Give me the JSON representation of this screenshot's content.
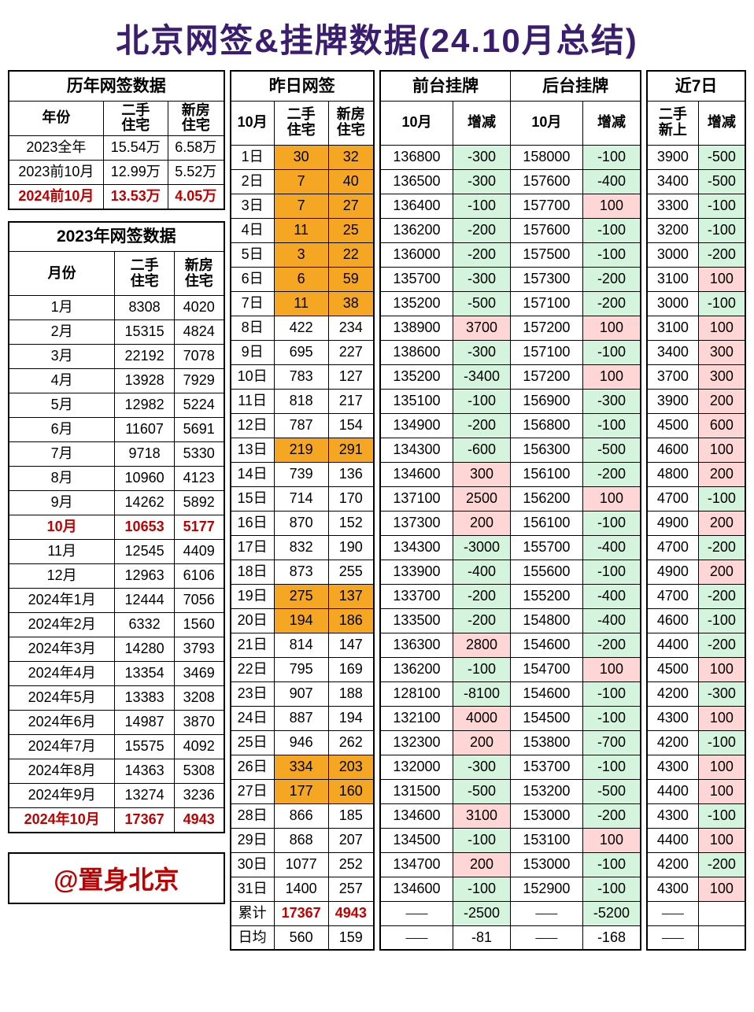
{
  "title": "北京网签&挂牌数据(24.10月总结)",
  "attribution": "@置身北京",
  "colors": {
    "title": "#3a1d6e",
    "red": "#c00000",
    "orange": "#f5a623",
    "green": "#d4f4dd",
    "pink": "#ffd6d6",
    "border": "#000000",
    "bg": "#ffffff"
  },
  "yearly": {
    "header": "历年网签数据",
    "cols": [
      "年份",
      "二手住宅",
      "新房住宅"
    ],
    "rows": [
      {
        "label": "2023全年",
        "v1": "15.54万",
        "v2": "6.58万",
        "red": false
      },
      {
        "label": "2023前10月",
        "v1": "12.99万",
        "v2": "5.52万",
        "red": false
      },
      {
        "label": "2024前10月",
        "v1": "13.53万",
        "v2": "4.05万",
        "red": true
      }
    ]
  },
  "monthly2023": {
    "header": "2023年网签数据",
    "cols": [
      "月份",
      "二手住宅",
      "新房住宅"
    ],
    "rows": [
      {
        "label": "1月",
        "v1": "8308",
        "v2": "4020",
        "red": false
      },
      {
        "label": "2月",
        "v1": "15315",
        "v2": "4824",
        "red": false
      },
      {
        "label": "3月",
        "v1": "22192",
        "v2": "7078",
        "red": false
      },
      {
        "label": "4月",
        "v1": "13928",
        "v2": "7929",
        "red": false
      },
      {
        "label": "5月",
        "v1": "12982",
        "v2": "5224",
        "red": false
      },
      {
        "label": "6月",
        "v1": "11607",
        "v2": "5691",
        "red": false
      },
      {
        "label": "7月",
        "v1": "9718",
        "v2": "5330",
        "red": false
      },
      {
        "label": "8月",
        "v1": "10960",
        "v2": "4123",
        "red": false
      },
      {
        "label": "9月",
        "v1": "14262",
        "v2": "5892",
        "red": false
      },
      {
        "label": "10月",
        "v1": "10653",
        "v2": "5177",
        "red": true
      },
      {
        "label": "11月",
        "v1": "12545",
        "v2": "4409",
        "red": false
      },
      {
        "label": "12月",
        "v1": "12963",
        "v2": "6106",
        "red": false
      },
      {
        "label": "2024年1月",
        "v1": "12444",
        "v2": "7056",
        "red": false
      },
      {
        "label": "2024年2月",
        "v1": "6332",
        "v2": "1560",
        "red": false
      },
      {
        "label": "2024年3月",
        "v1": "14280",
        "v2": "3793",
        "red": false
      },
      {
        "label": "2024年4月",
        "v1": "13354",
        "v2": "3469",
        "red": false
      },
      {
        "label": "2024年5月",
        "v1": "13383",
        "v2": "3208",
        "red": false
      },
      {
        "label": "2024年6月",
        "v1": "14987",
        "v2": "3870",
        "red": false
      },
      {
        "label": "2024年7月",
        "v1": "15575",
        "v2": "4092",
        "red": false
      },
      {
        "label": "2024年8月",
        "v1": "14363",
        "v2": "5308",
        "red": false
      },
      {
        "label": "2024年9月",
        "v1": "13274",
        "v2": "3236",
        "red": false
      },
      {
        "label": "2024年10月",
        "v1": "17367",
        "v2": "4943",
        "red": true
      }
    ]
  },
  "daily": {
    "header": "昨日网签",
    "cols": [
      "10月",
      "二手住宅",
      "新房住宅"
    ],
    "rows": [
      {
        "d": "1日",
        "s": "30",
        "n": "32",
        "hl": true
      },
      {
        "d": "2日",
        "s": "7",
        "n": "40",
        "hl": true
      },
      {
        "d": "3日",
        "s": "7",
        "n": "27",
        "hl": true
      },
      {
        "d": "4日",
        "s": "11",
        "n": "25",
        "hl": true
      },
      {
        "d": "5日",
        "s": "3",
        "n": "22",
        "hl": true
      },
      {
        "d": "6日",
        "s": "6",
        "n": "59",
        "hl": true
      },
      {
        "d": "7日",
        "s": "11",
        "n": "38",
        "hl": true
      },
      {
        "d": "8日",
        "s": "422",
        "n": "234",
        "hl": false
      },
      {
        "d": "9日",
        "s": "695",
        "n": "227",
        "hl": false
      },
      {
        "d": "10日",
        "s": "783",
        "n": "127",
        "hl": false
      },
      {
        "d": "11日",
        "s": "818",
        "n": "217",
        "hl": false
      },
      {
        "d": "12日",
        "s": "787",
        "n": "154",
        "hl": false
      },
      {
        "d": "13日",
        "s": "219",
        "n": "291",
        "hl": true
      },
      {
        "d": "14日",
        "s": "739",
        "n": "136",
        "hl": false
      },
      {
        "d": "15日",
        "s": "714",
        "n": "170",
        "hl": false
      },
      {
        "d": "16日",
        "s": "870",
        "n": "152",
        "hl": false
      },
      {
        "d": "17日",
        "s": "832",
        "n": "190",
        "hl": false
      },
      {
        "d": "18日",
        "s": "873",
        "n": "255",
        "hl": false
      },
      {
        "d": "19日",
        "s": "275",
        "n": "137",
        "hl": true
      },
      {
        "d": "20日",
        "s": "194",
        "n": "186",
        "hl": true
      },
      {
        "d": "21日",
        "s": "814",
        "n": "147",
        "hl": false
      },
      {
        "d": "22日",
        "s": "795",
        "n": "169",
        "hl": false
      },
      {
        "d": "23日",
        "s": "907",
        "n": "188",
        "hl": false
      },
      {
        "d": "24日",
        "s": "887",
        "n": "194",
        "hl": false
      },
      {
        "d": "25日",
        "s": "946",
        "n": "262",
        "hl": false
      },
      {
        "d": "26日",
        "s": "334",
        "n": "203",
        "hl": true
      },
      {
        "d": "27日",
        "s": "177",
        "n": "160",
        "hl": true
      },
      {
        "d": "28日",
        "s": "866",
        "n": "185",
        "hl": false
      },
      {
        "d": "29日",
        "s": "868",
        "n": "207",
        "hl": false
      },
      {
        "d": "30日",
        "s": "1077",
        "n": "252",
        "hl": false
      },
      {
        "d": "31日",
        "s": "1400",
        "n": "257",
        "hl": false
      }
    ],
    "total": {
      "label": "累计",
      "s": "17367",
      "n": "4943"
    },
    "avg": {
      "label": "日均",
      "s": "560",
      "n": "159"
    }
  },
  "listing": {
    "frontHeader": "前台挂牌",
    "backHeader": "后台挂牌",
    "cols": [
      "10月",
      "增减",
      "10月",
      "增减"
    ],
    "rows": [
      {
        "f": "136800",
        "fd": "-300",
        "b": "158000",
        "bd": "-100"
      },
      {
        "f": "136500",
        "fd": "-300",
        "b": "157600",
        "bd": "-400"
      },
      {
        "f": "136400",
        "fd": "-100",
        "b": "157700",
        "bd": "100"
      },
      {
        "f": "136200",
        "fd": "-200",
        "b": "157600",
        "bd": "-100"
      },
      {
        "f": "136000",
        "fd": "-200",
        "b": "157500",
        "bd": "-100"
      },
      {
        "f": "135700",
        "fd": "-300",
        "b": "157300",
        "bd": "-200"
      },
      {
        "f": "135200",
        "fd": "-500",
        "b": "157100",
        "bd": "-200"
      },
      {
        "f": "138900",
        "fd": "3700",
        "b": "157200",
        "bd": "100"
      },
      {
        "f": "138600",
        "fd": "-300",
        "b": "157100",
        "bd": "-100"
      },
      {
        "f": "135200",
        "fd": "-3400",
        "b": "157200",
        "bd": "100"
      },
      {
        "f": "135100",
        "fd": "-100",
        "b": "156900",
        "bd": "-300"
      },
      {
        "f": "134900",
        "fd": "-200",
        "b": "156800",
        "bd": "-100"
      },
      {
        "f": "134300",
        "fd": "-600",
        "b": "156300",
        "bd": "-500"
      },
      {
        "f": "134600",
        "fd": "300",
        "b": "156100",
        "bd": "-200"
      },
      {
        "f": "137100",
        "fd": "2500",
        "b": "156200",
        "bd": "100"
      },
      {
        "f": "137300",
        "fd": "200",
        "b": "156100",
        "bd": "-100"
      },
      {
        "f": "134300",
        "fd": "-3000",
        "b": "155700",
        "bd": "-400"
      },
      {
        "f": "133900",
        "fd": "-400",
        "b": "155600",
        "bd": "-100"
      },
      {
        "f": "133700",
        "fd": "-200",
        "b": "155200",
        "bd": "-400"
      },
      {
        "f": "133500",
        "fd": "-200",
        "b": "154800",
        "bd": "-400"
      },
      {
        "f": "136300",
        "fd": "2800",
        "b": "154600",
        "bd": "-200"
      },
      {
        "f": "136200",
        "fd": "-100",
        "b": "154700",
        "bd": "100"
      },
      {
        "f": "128100",
        "fd": "-8100",
        "b": "154600",
        "bd": "-100"
      },
      {
        "f": "132100",
        "fd": "4000",
        "b": "154500",
        "bd": "-100"
      },
      {
        "f": "132300",
        "fd": "200",
        "b": "153800",
        "bd": "-700"
      },
      {
        "f": "132000",
        "fd": "-300",
        "b": "153700",
        "bd": "-100"
      },
      {
        "f": "131500",
        "fd": "-500",
        "b": "153200",
        "bd": "-500"
      },
      {
        "f": "134600",
        "fd": "3100",
        "b": "153000",
        "bd": "-200"
      },
      {
        "f": "134500",
        "fd": "-100",
        "b": "153100",
        "bd": "100"
      },
      {
        "f": "134700",
        "fd": "200",
        "b": "153000",
        "bd": "-100"
      },
      {
        "f": "134600",
        "fd": "-100",
        "b": "152900",
        "bd": "-100"
      }
    ],
    "total": {
      "f": "——",
      "fd": "-2500",
      "b": "——",
      "bd": "-5200"
    },
    "avg": {
      "f": "——",
      "fd": "-81",
      "b": "——",
      "bd": "-168"
    }
  },
  "recent7": {
    "header": "近7日",
    "cols": [
      "二手新上",
      "增减"
    ],
    "rows": [
      {
        "v": "3900",
        "d": "-500"
      },
      {
        "v": "3400",
        "d": "-500"
      },
      {
        "v": "3300",
        "d": "-100"
      },
      {
        "v": "3200",
        "d": "-100"
      },
      {
        "v": "3000",
        "d": "-200"
      },
      {
        "v": "3100",
        "d": "100"
      },
      {
        "v": "3000",
        "d": "-100"
      },
      {
        "v": "3100",
        "d": "100"
      },
      {
        "v": "3400",
        "d": "300"
      },
      {
        "v": "3700",
        "d": "300"
      },
      {
        "v": "3900",
        "d": "200"
      },
      {
        "v": "4500",
        "d": "600"
      },
      {
        "v": "4600",
        "d": "100"
      },
      {
        "v": "4800",
        "d": "200"
      },
      {
        "v": "4700",
        "d": "-100"
      },
      {
        "v": "4900",
        "d": "200"
      },
      {
        "v": "4700",
        "d": "-200"
      },
      {
        "v": "4900",
        "d": "200"
      },
      {
        "v": "4700",
        "d": "-200"
      },
      {
        "v": "4600",
        "d": "-100"
      },
      {
        "v": "4400",
        "d": "-200"
      },
      {
        "v": "4500",
        "d": "100"
      },
      {
        "v": "4200",
        "d": "-300"
      },
      {
        "v": "4300",
        "d": "100"
      },
      {
        "v": "4200",
        "d": "-100"
      },
      {
        "v": "4300",
        "d": "100"
      },
      {
        "v": "4400",
        "d": "100"
      },
      {
        "v": "4300",
        "d": "-100"
      },
      {
        "v": "4400",
        "d": "100"
      },
      {
        "v": "4200",
        "d": "-200"
      },
      {
        "v": "4300",
        "d": "100"
      }
    ],
    "total": {
      "v": "——",
      "d": ""
    },
    "avg": {
      "v": "——",
      "d": ""
    }
  }
}
